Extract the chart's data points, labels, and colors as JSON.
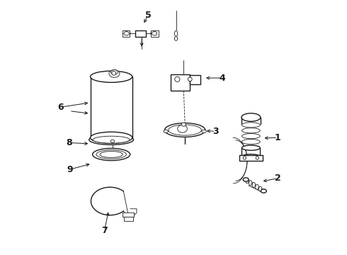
{
  "background_color": "#ffffff",
  "line_color": "#1a1a1a",
  "figsize": [
    4.9,
    3.6
  ],
  "dpi": 100,
  "label_positions": {
    "1": [
      0.91,
      0.46,
      0.845,
      0.46
    ],
    "2": [
      0.91,
      0.3,
      0.84,
      0.285
    ],
    "3": [
      0.66,
      0.485,
      0.6,
      0.485
    ],
    "4": [
      0.69,
      0.695,
      0.6,
      0.695
    ],
    "5": [
      0.395,
      0.945,
      0.375,
      0.9
    ],
    "6": [
      0.055,
      0.575,
      0.175,
      0.6
    ],
    "7": [
      0.225,
      0.095,
      0.235,
      0.175
    ],
    "8": [
      0.09,
      0.44,
      0.175,
      0.435
    ],
    "9": [
      0.09,
      0.33,
      0.185,
      0.355
    ]
  }
}
